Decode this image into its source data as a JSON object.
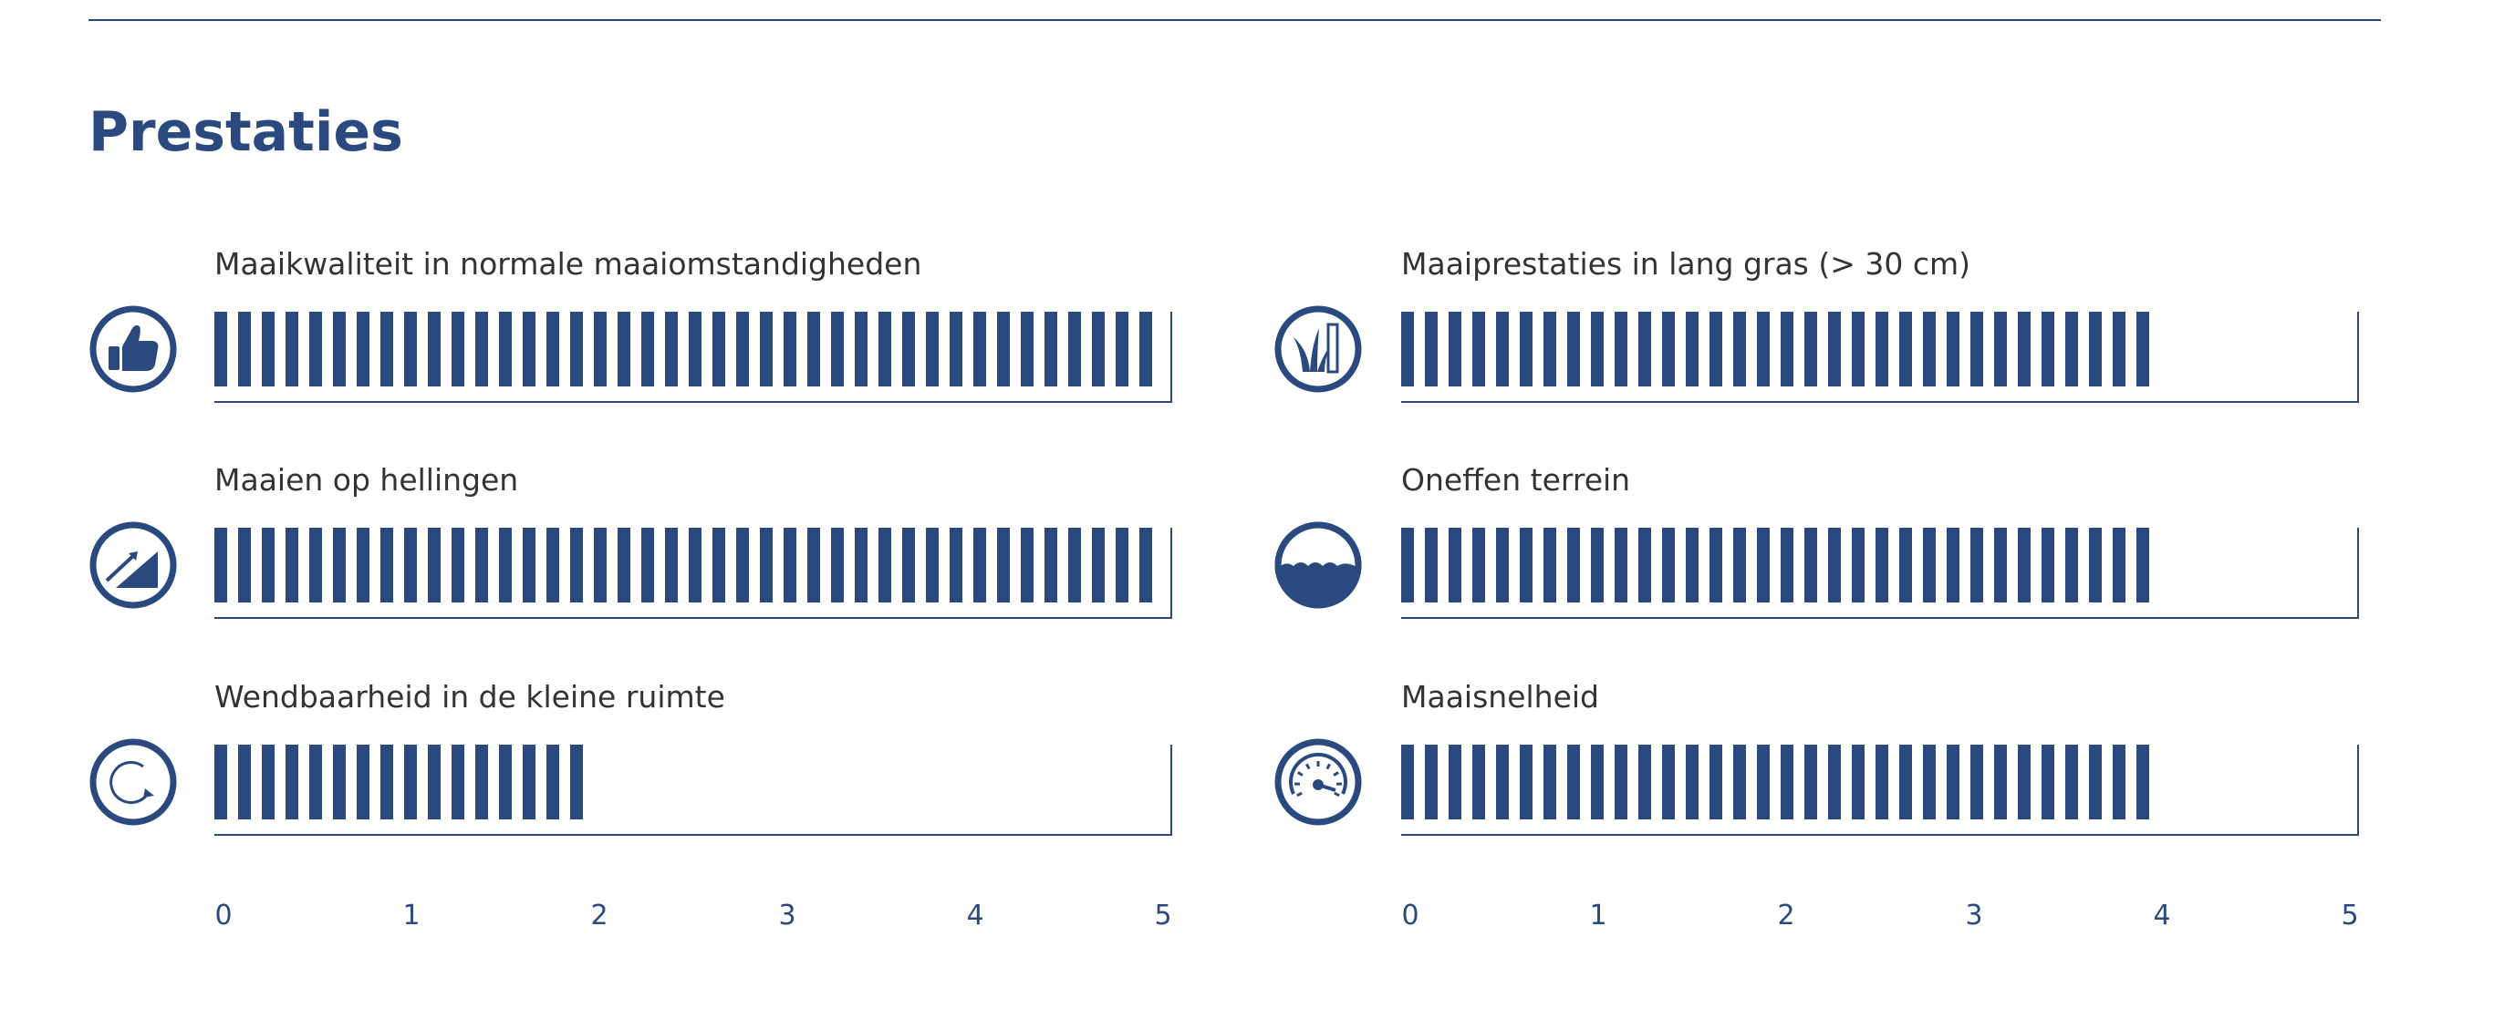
{
  "title": "Prestaties",
  "colors": {
    "accent": "#2a4a7f",
    "text": "#333333",
    "background": "#ffffff"
  },
  "chart_data": {
    "type": "bar",
    "title": "Prestaties",
    "xlim": [
      0,
      5
    ],
    "axis_ticks": [
      "0",
      "1",
      "2",
      "3",
      "4",
      "5"
    ],
    "ticks_per_unit": 8,
    "grid": false,
    "categories": [
      "Maaikwaliteit in normale maaiomstandigheden",
      "Maaien op hellingen",
      "Wendbaarheid in de kleine ruimte",
      "Maaiprestaties in lang gras (> 30 cm)",
      "Oneffen terrein",
      "Maaisnelheid"
    ],
    "values": [
      5,
      5,
      2,
      4,
      4,
      4
    ],
    "icons": [
      "thumbs-up-icon",
      "slope-icon",
      "turning-circle-icon",
      "tall-grass-icon",
      "rough-terrain-icon",
      "speedometer-icon"
    ]
  }
}
